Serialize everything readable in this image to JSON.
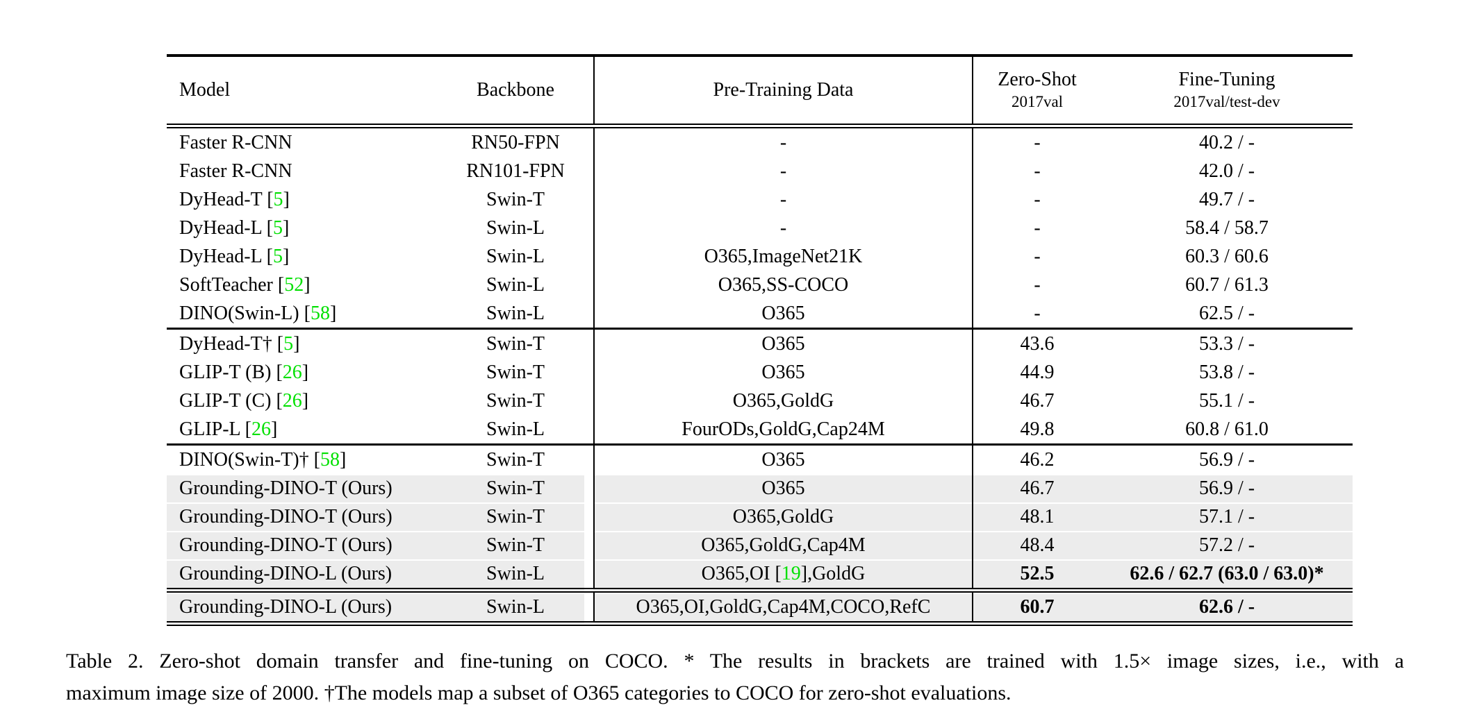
{
  "colors": {
    "citation_green": "#00e000",
    "row_highlight": "#ececec",
    "rule": "#000000",
    "background": "#ffffff"
  },
  "table": {
    "columns": [
      {
        "id": "model",
        "label": "Model"
      },
      {
        "id": "backbone",
        "label": "Backbone"
      },
      {
        "id": "pretraining",
        "label": "Pre-Training Data"
      },
      {
        "id": "zeroshot",
        "label": "Zero-Shot",
        "sublabel": "2017val"
      },
      {
        "id": "finetuning",
        "label": "Fine-Tuning",
        "sublabel": "2017val/test-dev"
      }
    ],
    "sections": [
      {
        "rows": [
          {
            "model": [
              {
                "t": "Faster R-CNN"
              }
            ],
            "backbone": "RN50-FPN",
            "pretraining": [
              {
                "t": "-"
              }
            ],
            "zeroshot": "-",
            "finetuning": "40.2 / -"
          },
          {
            "model": [
              {
                "t": "Faster R-CNN"
              }
            ],
            "backbone": "RN101-FPN",
            "pretraining": [
              {
                "t": "-"
              }
            ],
            "zeroshot": "-",
            "finetuning": "42.0 / -"
          },
          {
            "model": [
              {
                "t": "DyHead-T ["
              },
              {
                "c": "5"
              },
              {
                "t": "]"
              }
            ],
            "backbone": "Swin-T",
            "pretraining": [
              {
                "t": "-"
              }
            ],
            "zeroshot": "-",
            "finetuning": "49.7 / -"
          },
          {
            "model": [
              {
                "t": "DyHead-L ["
              },
              {
                "c": "5"
              },
              {
                "t": "]"
              }
            ],
            "backbone": "Swin-L",
            "pretraining": [
              {
                "t": "-"
              }
            ],
            "zeroshot": "-",
            "finetuning": "58.4 / 58.7"
          },
          {
            "model": [
              {
                "t": "DyHead-L ["
              },
              {
                "c": "5"
              },
              {
                "t": "]"
              }
            ],
            "backbone": "Swin-L",
            "pretraining": [
              {
                "t": "O365,ImageNet21K"
              }
            ],
            "zeroshot": "-",
            "finetuning": "60.3 / 60.6"
          },
          {
            "model": [
              {
                "t": "SoftTeacher ["
              },
              {
                "c": "52"
              },
              {
                "t": "]"
              }
            ],
            "backbone": "Swin-L",
            "pretraining": [
              {
                "t": "O365,SS-COCO"
              }
            ],
            "zeroshot": "-",
            "finetuning": "60.7 / 61.3"
          },
          {
            "model": [
              {
                "t": "DINO(Swin-L) ["
              },
              {
                "c": "58"
              },
              {
                "t": "]"
              }
            ],
            "backbone": "Swin-L",
            "pretraining": [
              {
                "t": "O365"
              }
            ],
            "zeroshot": "-",
            "finetuning": "62.5 / -"
          }
        ]
      },
      {
        "rows": [
          {
            "model": [
              {
                "t": "DyHead-T† ["
              },
              {
                "c": "5"
              },
              {
                "t": "]"
              }
            ],
            "backbone": "Swin-T",
            "pretraining": [
              {
                "t": "O365"
              }
            ],
            "zeroshot": "43.6",
            "finetuning": "53.3 / -"
          },
          {
            "model": [
              {
                "t": "GLIP-T (B) ["
              },
              {
                "c": "26"
              },
              {
                "t": "]"
              }
            ],
            "backbone": "Swin-T",
            "pretraining": [
              {
                "t": "O365"
              }
            ],
            "zeroshot": "44.9",
            "finetuning": "53.8 / -"
          },
          {
            "model": [
              {
                "t": "GLIP-T (C) ["
              },
              {
                "c": "26"
              },
              {
                "t": "]"
              }
            ],
            "backbone": "Swin-T",
            "pretraining": [
              {
                "t": "O365,GoldG"
              }
            ],
            "zeroshot": "46.7",
            "finetuning": "55.1 / -"
          },
          {
            "model": [
              {
                "t": "GLIP-L ["
              },
              {
                "c": "26"
              },
              {
                "t": "]"
              }
            ],
            "backbone": "Swin-L",
            "pretraining": [
              {
                "t": "FourODs,GoldG,Cap24M"
              }
            ],
            "zeroshot": "49.8",
            "finetuning": "60.8 / 61.0"
          }
        ]
      },
      {
        "rows": [
          {
            "model": [
              {
                "t": "DINO(Swin-T)† ["
              },
              {
                "c": "58"
              },
              {
                "t": "]"
              }
            ],
            "backbone": "Swin-T",
            "pretraining": [
              {
                "t": "O365"
              }
            ],
            "zeroshot": "46.2",
            "finetuning": "56.9 / -"
          },
          {
            "model": [
              {
                "t": "Grounding-DINO-T (Ours)"
              }
            ],
            "backbone": "Swin-T",
            "pretraining": [
              {
                "t": "O365"
              }
            ],
            "zeroshot": "46.7",
            "finetuning": "56.9 / -",
            "highlight": true
          },
          {
            "model": [
              {
                "t": "Grounding-DINO-T (Ours)"
              }
            ],
            "backbone": "Swin-T",
            "pretraining": [
              {
                "t": "O365,GoldG"
              }
            ],
            "zeroshot": "48.1",
            "finetuning": "57.1 / -",
            "highlight": true
          },
          {
            "model": [
              {
                "t": "Grounding-DINO-T (Ours)"
              }
            ],
            "backbone": "Swin-T",
            "pretraining": [
              {
                "t": "O365,GoldG,Cap4M"
              }
            ],
            "zeroshot": "48.4",
            "finetuning": "57.2 / -",
            "highlight": true
          },
          {
            "model": [
              {
                "t": "Grounding-DINO-L (Ours)"
              }
            ],
            "backbone": "Swin-L",
            "pretraining": [
              {
                "t": "O365,OI ["
              },
              {
                "c": "19"
              },
              {
                "t": "],GoldG"
              }
            ],
            "zeroshot": "52.5",
            "finetuning": "62.6 / 62.7 (63.0 / 63.0)*",
            "highlight": true,
            "bold": true
          }
        ]
      },
      {
        "rows": [
          {
            "model": [
              {
                "t": "Grounding-DINO-L (Ours)"
              }
            ],
            "backbone": "Swin-L",
            "pretraining": [
              {
                "t": "O365,OI,GoldG,Cap4M,COCO,RefC"
              }
            ],
            "zeroshot": "60.7",
            "finetuning": "62.6 / -",
            "highlight": true,
            "bold": true
          }
        ]
      }
    ]
  },
  "caption": {
    "line1": "Table 2. Zero-shot domain transfer and fine-tuning on COCO. * The results in brackets are trained with 1.5× image sizes, i.e., with a",
    "line2": "maximum image size of 2000. †The models map a subset of O365 categories to COCO for zero-shot evaluations."
  }
}
